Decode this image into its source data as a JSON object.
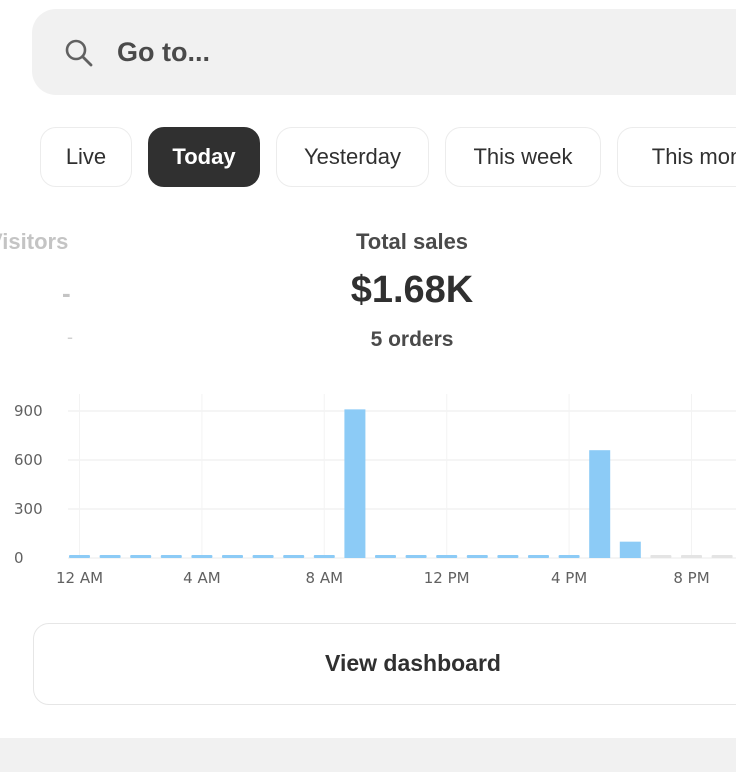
{
  "search": {
    "placeholder": "Go to...",
    "icon": "search-icon"
  },
  "tabs": [
    {
      "label": "Live",
      "active": false
    },
    {
      "label": "Today",
      "active": true
    },
    {
      "label": "Yesterday",
      "active": false
    },
    {
      "label": "This week",
      "active": false
    },
    {
      "label": "This mon",
      "active": false
    }
  ],
  "metrics": {
    "visitors": {
      "label": "Visitors",
      "value": "-",
      "sub": "-"
    },
    "total_sales": {
      "label": "Total sales",
      "value": "$1.68K",
      "sub": "5 orders"
    }
  },
  "chart_data": {
    "type": "bar",
    "title": "",
    "xlabel": "",
    "ylabel": "",
    "ylim": [
      0,
      1000
    ],
    "y_ticks": [
      0,
      300,
      600,
      900
    ],
    "x_ticks": [
      "12 AM",
      "4 AM",
      "8 AM",
      "12 PM",
      "4 PM",
      "8 PM"
    ],
    "categories": [
      "12 AM",
      "1 AM",
      "2 AM",
      "3 AM",
      "4 AM",
      "5 AM",
      "6 AM",
      "7 AM",
      "8 AM",
      "9 AM",
      "10 AM",
      "11 AM",
      "12 PM",
      "1 PM",
      "2 PM",
      "3 PM",
      "4 PM",
      "5 PM",
      "6 PM",
      "7 PM",
      "8 PM",
      "9 PM"
    ],
    "values": [
      0,
      0,
      0,
      0,
      0,
      0,
      0,
      0,
      0,
      910,
      0,
      0,
      0,
      0,
      0,
      0,
      0,
      660,
      100,
      0,
      0,
      0
    ],
    "future_from_index": 19,
    "grid": true,
    "colors": {
      "bar": "#8ccbf6",
      "grid": "#ebebeb",
      "future": "#e4e4e4"
    }
  },
  "dashboard": {
    "label": "View dashboard"
  }
}
